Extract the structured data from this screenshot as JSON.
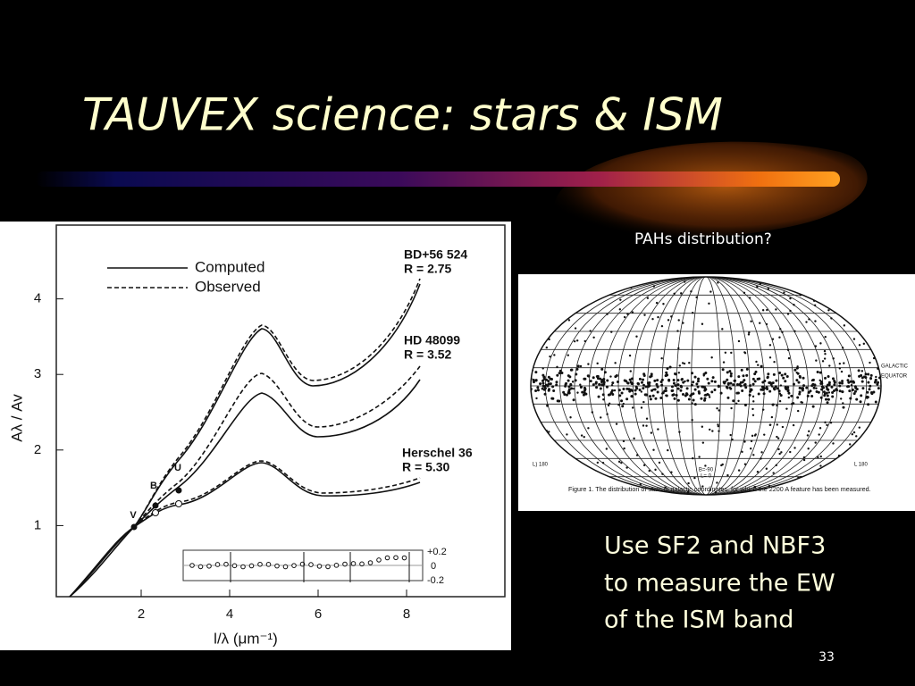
{
  "slide": {
    "title": "TAUVEX science: stars & ISM",
    "annotation": "PAHs distribution?",
    "text_lines": [
      "Use SF2 and NBF3",
      "to measure the EW",
      "of the ISM band"
    ],
    "page_number": "33"
  },
  "figure_left": {
    "legend": [
      "Computed",
      "Observed"
    ],
    "curve_labels": [
      {
        "name": "BD+56 524",
        "r": "R = 2.75"
      },
      {
        "name": "HD 48099",
        "r": "R = 3.52"
      },
      {
        "name": "Herschel 36",
        "r": "R = 5.30"
      }
    ],
    "xticks": [
      2,
      4,
      6,
      8
    ],
    "yticks": [
      1,
      2,
      3,
      4
    ],
    "x_label": "l/λ (μm⁻¹)",
    "y_label": "Aλ / Av",
    "band_labels": [
      "V",
      "B",
      "U"
    ],
    "residual_ticks": [
      "+0.2",
      "0",
      "-0.2"
    ]
  },
  "figure_right": {
    "equator_label": [
      "GALACTIC",
      "EQUATOR"
    ],
    "corner_labels": [
      "L) 180",
      "L 180"
    ],
    "center_labels": [
      "B=-90",
      "L= 0"
    ],
    "caption": "Figure 1.  The distribution of stars in galactic coordinates, for which the 2200 A feature has been measured."
  }
}
